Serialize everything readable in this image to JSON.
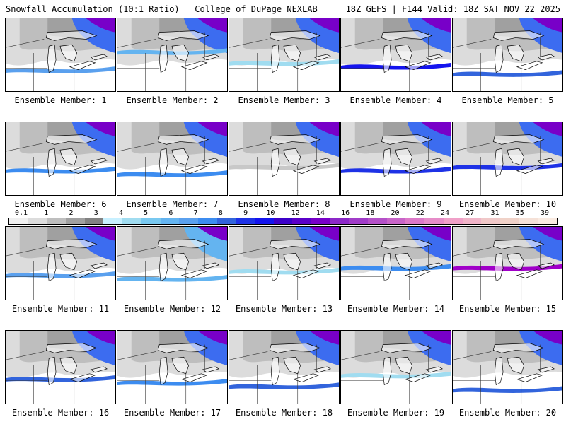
{
  "header": {
    "title_left": "Snowfall Accumulation (10:1 Ratio) | College of DuPage NEXLAB",
    "title_right": "18Z GEFS | F144 Valid: 18Z SAT NOV 22 2025"
  },
  "panels": [
    {
      "label": "Ensemble Member: 1",
      "north": "strong",
      "bands": [
        {
          "y": 0.7,
          "c": "#5aa0ee"
        }
      ]
    },
    {
      "label": "Ensemble Member: 2",
      "north": "strong",
      "bands": [
        {
          "y": 0.45,
          "c": "#64b4f0"
        }
      ]
    },
    {
      "label": "Ensemble Member: 3",
      "north": "strong",
      "bands": [
        {
          "y": 0.6,
          "c": "#a0dcf0"
        }
      ]
    },
    {
      "label": "Ensemble Member: 4",
      "north": "strong",
      "bands": [
        {
          "y": 0.65,
          "c": "#1414ee"
        }
      ]
    },
    {
      "label": "Ensemble Member: 5",
      "north": "strong",
      "bands": [
        {
          "y": 0.75,
          "c": "#3264dc"
        }
      ]
    },
    {
      "label": "Ensemble Member: 6",
      "north": "strong",
      "bands": [
        {
          "y": 0.65,
          "c": "#3c8cf0"
        }
      ]
    },
    {
      "label": "Ensemble Member: 7",
      "north": "strong",
      "bands": [
        {
          "y": 0.7,
          "c": "#3c8cf0"
        }
      ]
    },
    {
      "label": "Ensemble Member: 8",
      "north": "strong",
      "bands": [
        {
          "y": 0.6,
          "c": "#c8c8c8"
        }
      ]
    },
    {
      "label": "Ensemble Member: 9",
      "north": "strong",
      "bands": [
        {
          "y": 0.65,
          "c": "#1e32e6"
        }
      ]
    },
    {
      "label": "Ensemble Member: 10",
      "north": "strong",
      "bands": [
        {
          "y": 0.6,
          "c": "#1e32e6"
        }
      ]
    },
    {
      "label": "Ensemble Member: 11",
      "north": "strong",
      "bands": [
        {
          "y": 0.65,
          "c": "#5aa0ee"
        }
      ]
    },
    {
      "label": "Ensemble Member: 12",
      "north": "medium",
      "bands": [
        {
          "y": 0.7,
          "c": "#64b4f0"
        }
      ]
    },
    {
      "label": "Ensemble Member: 13",
      "north": "strong",
      "bands": [
        {
          "y": 0.6,
          "c": "#a0dcf0"
        }
      ]
    },
    {
      "label": "Ensemble Member: 14",
      "north": "strong",
      "bands": [
        {
          "y": 0.55,
          "c": "#3c8cf0"
        }
      ]
    },
    {
      "label": "Ensemble Member: 15",
      "north": "strong",
      "bands": [
        {
          "y": 0.55,
          "c": "#a000c8"
        }
      ]
    },
    {
      "label": "Ensemble Member: 16",
      "north": "strong",
      "bands": [
        {
          "y": 0.65,
          "c": "#3264dc"
        }
      ]
    },
    {
      "label": "Ensemble Member: 17",
      "north": "strong",
      "bands": [
        {
          "y": 0.7,
          "c": "#3c8cf0"
        }
      ]
    },
    {
      "label": "Ensemble Member: 18",
      "north": "strong",
      "bands": [
        {
          "y": 0.75,
          "c": "#3264dc"
        }
      ]
    },
    {
      "label": "Ensemble Member: 19",
      "north": "strong",
      "bands": [
        {
          "y": 0.6,
          "c": "#a0dcf0"
        }
      ]
    },
    {
      "label": "Ensemble Member: 20",
      "north": "strong",
      "bands": [
        {
          "y": 0.8,
          "c": "#3264dc"
        }
      ]
    }
  ],
  "colorbar": {
    "ticks": [
      "0.1",
      "1",
      "2",
      "3",
      "4",
      "5",
      "6",
      "7",
      "8",
      "9",
      "10",
      "12",
      "14",
      "16",
      "18",
      "20",
      "22",
      "24",
      "27",
      "31",
      "35",
      "39"
    ],
    "colors": [
      "#f0f0f0",
      "#dcdcdc",
      "#bebebe",
      "#a0a0a0",
      "#828282",
      "#c8f0ff",
      "#a0dcf0",
      "#78c8f0",
      "#64b4f0",
      "#5aa0ee",
      "#3c8cf0",
      "#3264dc",
      "#1e32e6",
      "#1414ee",
      "#3c00c8",
      "#5a00c8",
      "#7800c8",
      "#8c28c8",
      "#a03cc8",
      "#b450c8",
      "#c864c8",
      "#dc78c8",
      "#e68cc8",
      "#f0a0c8",
      "#f0b4c8",
      "#f0c8c8",
      "#f0d2c8",
      "#f5e1d7",
      "#faebe1"
    ]
  }
}
